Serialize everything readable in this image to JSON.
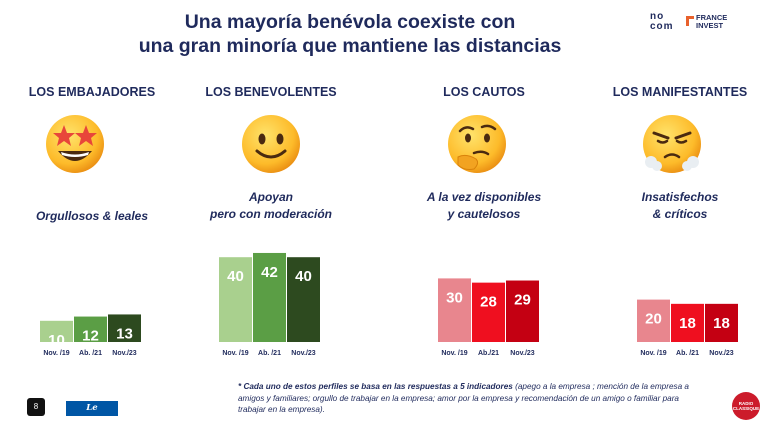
{
  "header": {
    "title_line1": "Una mayoría benévola coexiste con",
    "title_line2": "una gran minoría que mantiene las distancias",
    "logo_nocom": "no com",
    "logo_france_invest": "FRANCE INVEST"
  },
  "profiles": [
    {
      "name": "LOS EMBAJADORES",
      "emoji": "star-struck-emoji",
      "desc": [
        "Orgullosos & leales"
      ]
    },
    {
      "name": "LOS BENEVOLENTES",
      "emoji": "smiling-face-emoji",
      "desc": [
        "Apoyan",
        "pero con moderación"
      ]
    },
    {
      "name": "LOS  CAUTOS",
      "emoji": "thinking-face-emoji",
      "desc": [
        "A la vez disponibles",
        "y cautelosos"
      ]
    },
    {
      "name": "LOS MANIFESTANTES",
      "emoji": "steam-nose-face-emoji",
      "desc": [
        "Insatisfechos",
        "& críticos"
      ]
    }
  ],
  "chart_data": [
    {
      "type": "bar",
      "categories": [
        "Nov. /19",
        "Ab. /21",
        "Nov./23"
      ],
      "values": [
        10,
        12,
        13
      ],
      "colors": [
        "#a9d08e",
        "#5b9e45",
        "#2d4a1f"
      ],
      "label_colors": [
        "#ffffff",
        "#ffffff",
        "#ffffff"
      ]
    },
    {
      "type": "bar",
      "categories": [
        "Nov. /19",
        "Ab. /21",
        "Nov./23"
      ],
      "values": [
        40,
        42,
        40
      ],
      "colors": [
        "#a9d08e",
        "#5b9e45",
        "#2d4a1f"
      ],
      "label_colors": [
        "#ffffff",
        "#ffffff",
        "#ffffff"
      ]
    },
    {
      "type": "bar",
      "categories": [
        "Nov. /19",
        "Ab./21",
        "Nov./23"
      ],
      "values": [
        30,
        28,
        29
      ],
      "colors": [
        "#e8868e",
        "#ef0f1f",
        "#c40012"
      ],
      "label_colors": [
        "#ffffff",
        "#ffffff",
        "#ffffff"
      ]
    },
    {
      "type": "bar",
      "categories": [
        "Nov. /19",
        "Ab. /21",
        "Nov./23"
      ],
      "values": [
        20,
        18,
        18
      ],
      "colors": [
        "#e8868e",
        "#ef0f1f",
        "#c40012"
      ],
      "label_colors": [
        "#ffffff",
        "#ffffff",
        "#ffffff"
      ]
    }
  ],
  "footnote": {
    "bold": "* Cada uno de estos perfiles se basa en las respuestas a 5 indicadores",
    "rest": " (apego a la empresa ; mención de la empresa a amigos y familiares; orgullo de trabajar en la empresa; amor por la empresa y recomendación de un amigo o familiar para trabajar en la empresa)."
  },
  "footer": {
    "page_number": "8",
    "le_parisien": "Le Parisien",
    "radio_classique": "RADIO CLASSIQUE"
  }
}
